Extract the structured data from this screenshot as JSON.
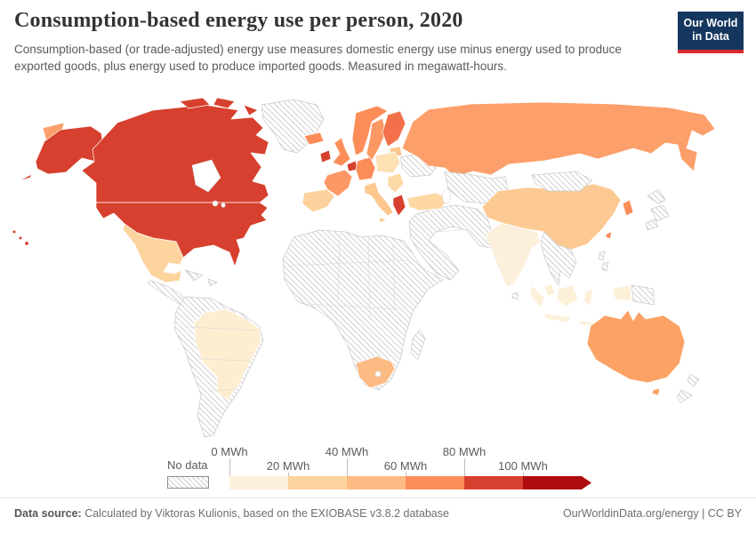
{
  "header": {
    "title": "Consumption-based energy use per person, 2020",
    "subtitle": "Consumption-based (or trade-adjusted) energy use measures domestic energy use minus energy used to produce exported goods, plus energy used to produce imported goods. Measured in megawatt-hours.",
    "logo": {
      "line1": "Our World",
      "line2": "in Data",
      "bg": "#15375f",
      "accent": "#dc2a2f"
    }
  },
  "legend": {
    "no_data_label": "No data",
    "tick_labels": [
      "0 MWh",
      "20 MWh",
      "40 MWh",
      "60 MWh",
      "80 MWh",
      "100 MWh"
    ],
    "bin_colors": [
      "#fdf0da",
      "#fdd49e",
      "#fdbb84",
      "#fc8d59",
      "#d7402e",
      "#ae0c0f"
    ]
  },
  "footer": {
    "label": "Data source:",
    "text": " Calculated by Viktoras Kulionis, based on the EXIOBASE v3.8.2 database",
    "url": "OurWorldinData.org/energy",
    "separator": " | ",
    "license": "CC BY"
  },
  "map": {
    "border_color": "#ffffff",
    "no_data_border": "#c9c9c9",
    "countries": [
      {
        "id": "canada",
        "fill": "#d7402e"
      },
      {
        "id": "usa",
        "fill": "#d7402e"
      },
      {
        "id": "alaska",
        "fill": "#d7402e"
      },
      {
        "id": "hawaii",
        "fill": "#d7402e"
      },
      {
        "id": "mexico",
        "fill": "#fdd49e"
      },
      {
        "id": "brazil",
        "fill": "#fdeed2"
      },
      {
        "id": "chukotka",
        "fill": "#fc9f6b"
      },
      {
        "id": "russia",
        "fill": "#fc9f6b"
      },
      {
        "id": "china",
        "fill": "#fdc992"
      },
      {
        "id": "india",
        "fill": "#fcf0dc"
      },
      {
        "id": "south-korea",
        "fill": "#fc8d59"
      },
      {
        "id": "taiwan",
        "fill": "#fc8d59"
      },
      {
        "id": "indonesia",
        "fill": "#fdf0d9"
      },
      {
        "id": "malaysia",
        "fill": "#fdf0d9"
      },
      {
        "id": "west-papua",
        "fill": "#fdf0d9"
      },
      {
        "id": "australia",
        "fill": "#fca265"
      },
      {
        "id": "tasmania",
        "fill": "#fca265"
      },
      {
        "id": "south-africa",
        "fill": "#fdbb84"
      },
      {
        "id": "turkey",
        "fill": "#fdd8a3"
      },
      {
        "id": "iceland",
        "fill": "#fc8d59"
      },
      {
        "id": "norway",
        "fill": "#fc8d59"
      },
      {
        "id": "sweden",
        "fill": "#fc9864"
      },
      {
        "id": "finland",
        "fill": "#f2714b"
      },
      {
        "id": "denmark",
        "fill": "#fc8d59"
      },
      {
        "id": "uk",
        "fill": "#fc8d59"
      },
      {
        "id": "ireland",
        "fill": "#d7402e"
      },
      {
        "id": "france",
        "fill": "#fc9866"
      },
      {
        "id": "benelux",
        "fill": "#d7402e"
      },
      {
        "id": "germany",
        "fill": "#fc8d59"
      },
      {
        "id": "iberia",
        "fill": "#fdd19b"
      },
      {
        "id": "italy",
        "fill": "#fdc78e"
      },
      {
        "id": "sicily",
        "fill": "#fdc78e"
      },
      {
        "id": "poland",
        "fill": "#fde2b4"
      },
      {
        "id": "balkans-east",
        "fill": "#fdd9a6"
      },
      {
        "id": "baltics",
        "fill": "#fdc78e"
      },
      {
        "id": "greece",
        "fill": "#d7402e"
      },
      {
        "id": "greenland",
        "fill": "no-data"
      },
      {
        "id": "central-america",
        "fill": "no-data"
      },
      {
        "id": "cuba",
        "fill": "no-data"
      },
      {
        "id": "hispaniola",
        "fill": "no-data"
      },
      {
        "id": "south-america",
        "fill": "no-data"
      },
      {
        "id": "africa",
        "fill": "no-data"
      },
      {
        "id": "madagascar",
        "fill": "no-data"
      },
      {
        "id": "ukraine",
        "fill": "no-data"
      },
      {
        "id": "middle-east",
        "fill": "no-data"
      },
      {
        "id": "kazakhstan",
        "fill": "no-data"
      },
      {
        "id": "mongolia",
        "fill": "no-data"
      },
      {
        "id": "japan",
        "fill": "no-data"
      },
      {
        "id": "indochina",
        "fill": "no-data"
      },
      {
        "id": "philippines",
        "fill": "no-data"
      },
      {
        "id": "sri-lanka",
        "fill": "no-data"
      },
      {
        "id": "png",
        "fill": "no-data"
      },
      {
        "id": "new-zealand",
        "fill": "no-data"
      }
    ]
  },
  "chart_data": {
    "type": "choropleth_map",
    "title": "Consumption-based energy use per person, 2020",
    "unit": "MWh",
    "year": 2020,
    "legend_bins": [
      "0-20 MWh",
      "20-40 MWh",
      "40-60 MWh",
      "60-80 MWh",
      "80-100 MWh",
      "100+ MWh",
      "No data"
    ],
    "legend_colors": [
      "#fdf0da",
      "#fdd49e",
      "#fdbb84",
      "#fc8d59",
      "#d7402e",
      "#ae0c0f"
    ],
    "values_by_country": {
      "United States": "80-100 MWh",
      "Canada": "80-100 MWh",
      "Mexico": "20-40 MWh",
      "Brazil": "0-20 MWh",
      "Russia": "40-60 MWh",
      "China": "20-40 MWh",
      "India": "0-20 MWh",
      "South Korea": "60-80 MWh",
      "Taiwan": "60-80 MWh",
      "Indonesia": "0-20 MWh",
      "Malaysia": "0-20 MWh",
      "Australia": "40-60 MWh",
      "South Africa": "40-60 MWh",
      "Turkey": "20-40 MWh",
      "United Kingdom": "60-80 MWh",
      "Ireland": "80-100 MWh",
      "France": "60-80 MWh",
      "Germany": "60-80 MWh",
      "Belgium and Netherlands": "80-100 MWh",
      "Spain": "20-40 MWh",
      "Portugal": "20-40 MWh",
      "Italy": "40-60 MWh",
      "Greece": "80-100 MWh",
      "Norway": "60-80 MWh",
      "Sweden": "60-80 MWh",
      "Finland": "80-100 MWh",
      "Iceland": "60-80 MWh",
      "Denmark": "60-80 MWh",
      "Poland": "20-40 MWh",
      "Eastern Europe": "20-40 MWh"
    },
    "no_data_regions": [
      "Greenland",
      "Central America",
      "Caribbean",
      "South America except Brazil",
      "Africa except South Africa",
      "Middle East",
      "Central Asia",
      "Kazakhstan",
      "Mongolia",
      "Ukraine",
      "Japan",
      "Mainland Southeast Asia",
      "Philippines",
      "Sri Lanka",
      "Papua New Guinea",
      "New Zealand"
    ]
  }
}
